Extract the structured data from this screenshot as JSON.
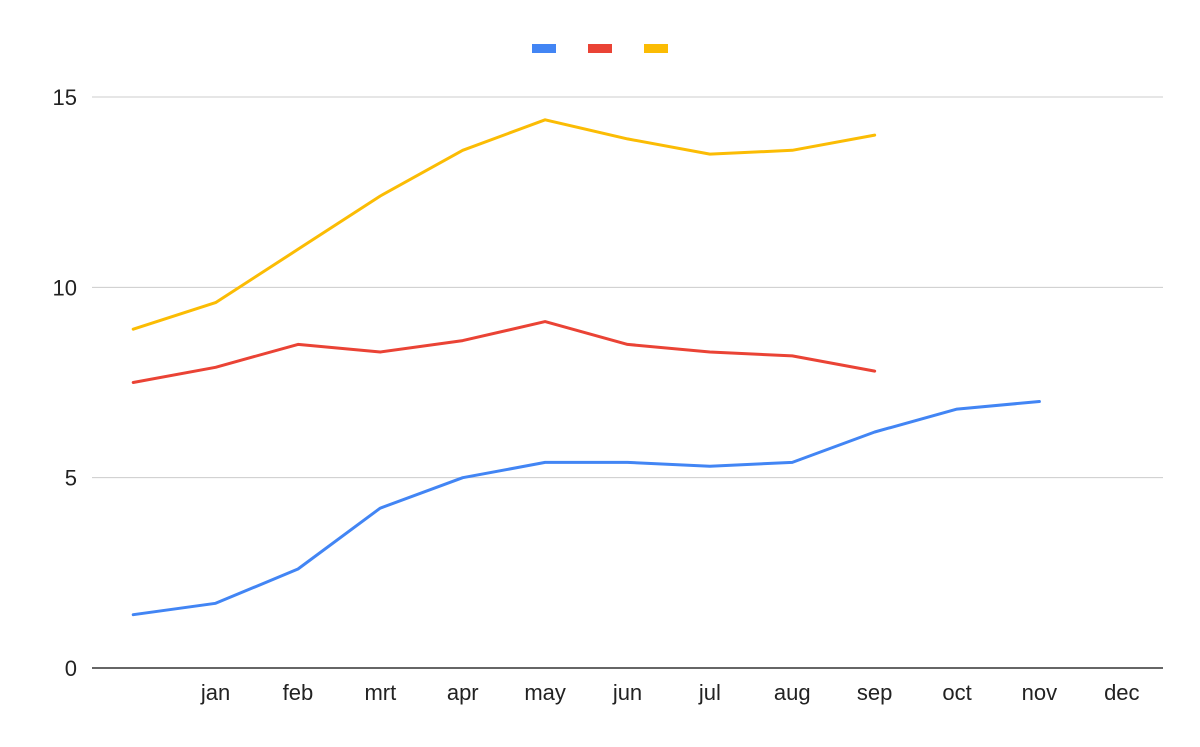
{
  "chart_data": {
    "type": "line",
    "title": "",
    "xlabel": "",
    "ylabel": "",
    "categories": [
      "",
      "jan",
      "feb",
      "mrt",
      "apr",
      "may",
      "jun",
      "jul",
      "aug",
      "sep",
      "oct",
      "nov",
      "dec"
    ],
    "ylim": [
      0,
      15
    ],
    "yticks": [
      0,
      5,
      10,
      15
    ],
    "grid": true,
    "legend": {
      "position": "top-center",
      "show_labels": false
    },
    "series": [
      {
        "color": "#4285F4",
        "values": [
          1.4,
          1.7,
          2.6,
          4.2,
          5.0,
          5.4,
          5.4,
          5.3,
          5.4,
          6.2,
          6.8,
          7.0,
          null
        ]
      },
      {
        "color": "#EA4335",
        "values": [
          7.5,
          7.9,
          8.5,
          8.3,
          8.6,
          9.1,
          8.5,
          8.3,
          8.2,
          7.8,
          null,
          null,
          null
        ]
      },
      {
        "color": "#FBBC04",
        "values": [
          8.9,
          9.6,
          11.0,
          12.4,
          13.6,
          14.4,
          13.9,
          13.5,
          13.6,
          14.0,
          null,
          null,
          null
        ]
      }
    ],
    "colors": {
      "grid": "#cccccc",
      "axis": "#333333",
      "text": "#222222"
    }
  }
}
